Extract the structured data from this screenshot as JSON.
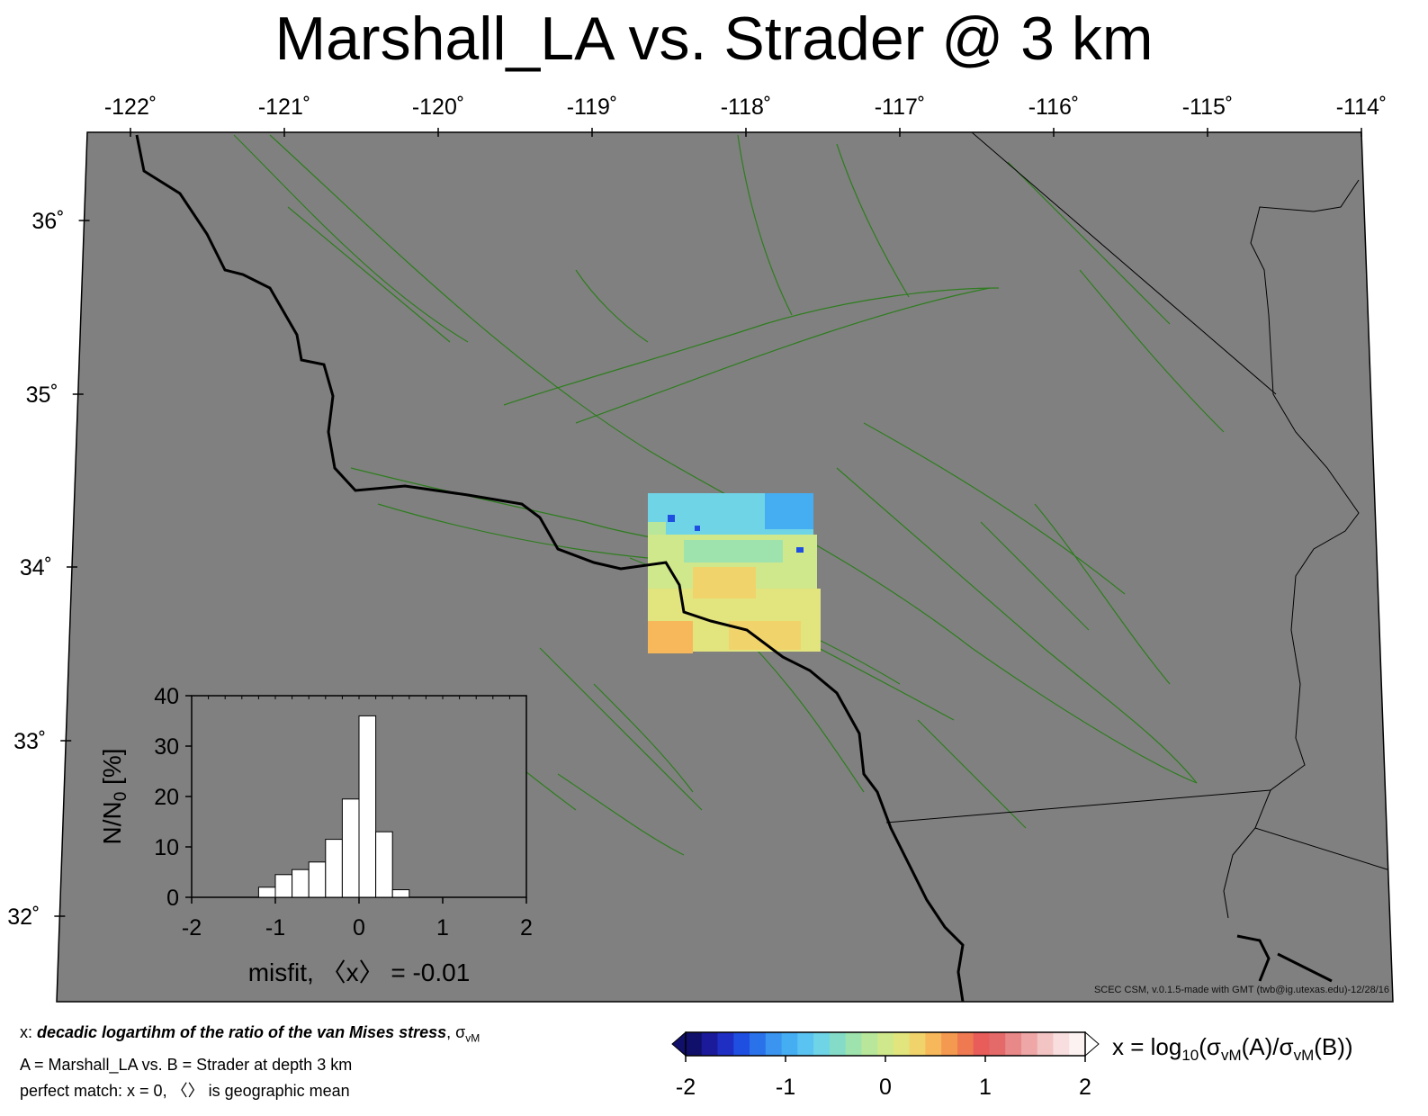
{
  "title": "Marshall_LA vs. Strader @ 3 km",
  "map": {
    "lon_ticks": [
      "-122˚",
      "-121˚",
      "-120˚",
      "-119˚",
      "-118˚",
      "-117˚",
      "-116˚",
      "-115˚",
      "-114˚"
    ],
    "lat_ticks": [
      "32˚",
      "33˚",
      "34˚",
      "35˚",
      "36˚"
    ],
    "background_color": "#808080",
    "fault_color": "#2e7d1e",
    "coast_color": "#000000",
    "credit": "SCEC CSM, v.0.1.5-made with GMT (twb@ig.utexas.edu)-12/28/16"
  },
  "inset": {
    "ylabel": "N/N",
    "ylabel_sub": "0",
    "ylabel_unit": " [%]",
    "xlabel": "misfit, 〈x〉 = -0.01",
    "x_ticks": [
      "-2",
      "-1",
      "0",
      "1",
      "2"
    ],
    "y_ticks": [
      "0",
      "10",
      "20",
      "30",
      "40"
    ]
  },
  "chart_data": {
    "type": "bar",
    "title": "",
    "xlabel": "misfit, 〈x〉 = -0.01",
    "ylabel": "N/N0 [%]",
    "xlim": [
      -2,
      2
    ],
    "ylim": [
      0,
      40
    ],
    "bin_width": 0.2,
    "bin_centers": [
      -1.1,
      -0.9,
      -0.7,
      -0.5,
      -0.3,
      -0.1,
      0.1,
      0.3,
      0.5
    ],
    "values": [
      2,
      4.5,
      5.5,
      7,
      11.5,
      19.5,
      36,
      13,
      1.5
    ]
  },
  "colorbar": {
    "tick_labels": [
      "-2",
      "-1",
      "0",
      "1",
      "2"
    ],
    "label_prefix": "x = log",
    "label_sub1": "10",
    "label_mid1": "(σ",
    "label_sub2": "vM",
    "label_mid2": "(A)/σ",
    "label_sub3": "vM",
    "label_end": "(B))",
    "range": [
      -2,
      2
    ],
    "colors": [
      "#10106b",
      "#1a1a9a",
      "#1f2fc4",
      "#1f4fe0",
      "#2a72ea",
      "#3a94f0",
      "#45adf2",
      "#5ac3f2",
      "#6fd4e6",
      "#84dcc8",
      "#9ee2ae",
      "#b8e69a",
      "#cfe88c",
      "#e2e47e",
      "#f1d36c",
      "#f6b85a",
      "#f49a50",
      "#ef7a52",
      "#e85d5a",
      "#e46a6a",
      "#e88888",
      "#eea6a6",
      "#f3c4c4",
      "#f8dede",
      "#fdf2f2"
    ]
  },
  "notes": {
    "line1_prefix": "x: ",
    "line1_emph": "decadic logartihm of the ratio of the van Mises stress",
    "line1_suffix": ", σ",
    "line1_sub": "vM",
    "line2": "A = Marshall_LA vs.  B = Strader at depth 3 km",
    "line3": "perfect match: x = 0, 〈〉 is geographic mean"
  }
}
